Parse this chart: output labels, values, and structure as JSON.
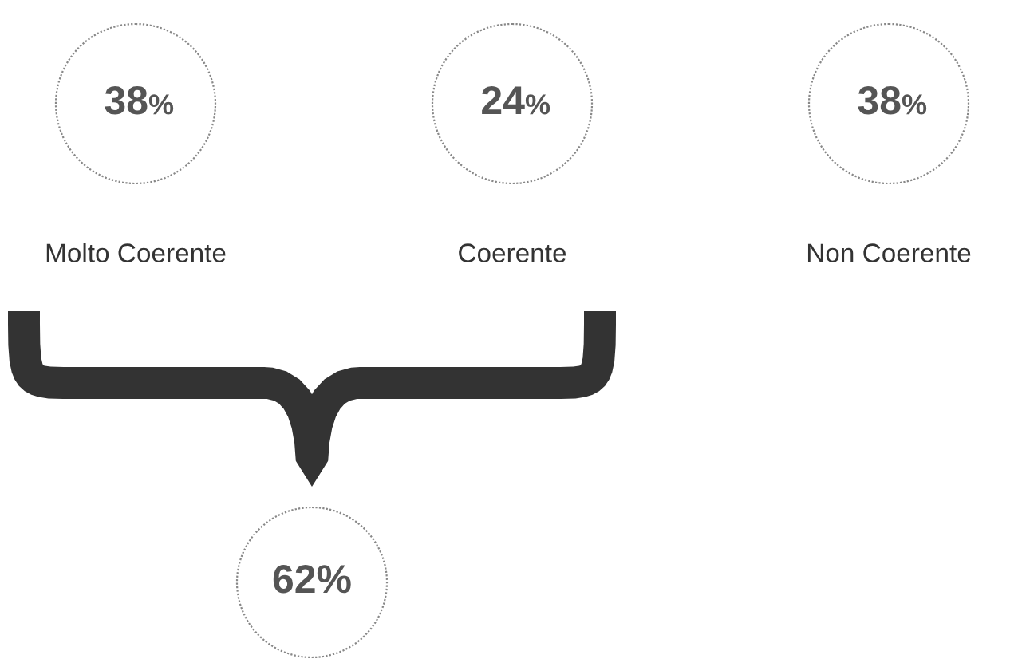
{
  "chart_data": {
    "type": "other",
    "categories": [
      "Molto Coerente",
      "Coerente",
      "Non Coerente"
    ],
    "values": [
      38,
      24,
      38
    ],
    "value_labels": [
      "38%",
      "24%",
      "38%"
    ],
    "annotations": [
      "62%"
    ]
  }
}
